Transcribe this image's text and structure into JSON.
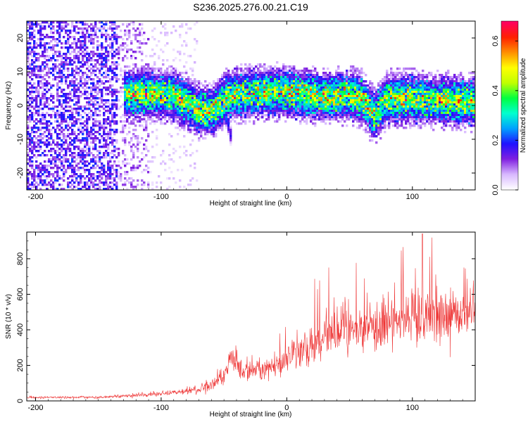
{
  "figure_title": "S236.2025.276.00.21.C19",
  "colors": {
    "snr_line": "#ee3333",
    "spectrogram_background": "#ffffff"
  },
  "chart_data": [
    {
      "type": "heatmap",
      "name": "spectrogram",
      "xlabel": "Height of straight line (km)",
      "ylabel": "Frequency (Hz)",
      "xlim": [
        -207,
        150
      ],
      "ylim": [
        -25,
        25
      ],
      "x_ticks": [
        -200,
        -100,
        0,
        100
      ],
      "y_ticks": [
        -20,
        -10,
        0,
        10,
        20
      ],
      "colorbar": {
        "label": "Normalized spectral amplitude",
        "range": [
          0.0,
          0.68
        ],
        "ticks": [
          0.0,
          0.2,
          0.4,
          0.6
        ],
        "colormap": [
          "#ffffff",
          "#d8b8ff",
          "#8020e0",
          "#2010ff",
          "#00a0ff",
          "#00ffd0",
          "#00ff40",
          "#c0ff00",
          "#ffff00",
          "#ff9000",
          "#ff2000",
          "#ff0060"
        ]
      },
      "band_center_hz": [
        {
          "x": -130,
          "f": 3
        },
        {
          "x": -110,
          "f": 3.5
        },
        {
          "x": -90,
          "f": 3
        },
        {
          "x": -80,
          "f": 1
        },
        {
          "x": -70,
          "f": -1.5
        },
        {
          "x": -60,
          "f": -2
        },
        {
          "x": -52,
          "f": 1
        },
        {
          "x": -45,
          "f": 3
        },
        {
          "x": -30,
          "f": 3.5
        },
        {
          "x": -10,
          "f": 4
        },
        {
          "x": 10,
          "f": 3.5
        },
        {
          "x": 30,
          "f": 2.5
        },
        {
          "x": 50,
          "f": 3
        },
        {
          "x": 60,
          "f": 2
        },
        {
          "x": 65,
          "f": -1
        },
        {
          "x": 70,
          "f": -3
        },
        {
          "x": 80,
          "f": 2
        },
        {
          "x": 100,
          "f": 2
        },
        {
          "x": 120,
          "f": 1.5
        },
        {
          "x": 150,
          "f": 1
        }
      ],
      "descending_branch": [
        {
          "x": -52,
          "f": 0
        },
        {
          "x": -47,
          "f": -5
        },
        {
          "x": -44,
          "f": -10
        }
      ],
      "noise_region_x": [
        -207,
        -70
      ]
    },
    {
      "type": "line",
      "name": "snr",
      "xlabel": "Height of straight line (km)",
      "ylabel": "SNR (10 * v/v)",
      "xlim": [
        -207,
        150
      ],
      "ylim": [
        0,
        950
      ],
      "x_ticks": [
        -200,
        -100,
        0,
        100
      ],
      "y_ticks": [
        0,
        200,
        400,
        600,
        800
      ],
      "trend": [
        {
          "x": -207,
          "y": 20
        },
        {
          "x": -150,
          "y": 20
        },
        {
          "x": -100,
          "y": 40
        },
        {
          "x": -70,
          "y": 60
        },
        {
          "x": -50,
          "y": 130
        },
        {
          "x": -45,
          "y": 260
        },
        {
          "x": -35,
          "y": 160
        },
        {
          "x": -10,
          "y": 200
        },
        {
          "x": 10,
          "y": 280
        },
        {
          "x": 30,
          "y": 360
        },
        {
          "x": 50,
          "y": 390
        },
        {
          "x": 70,
          "y": 420
        },
        {
          "x": 90,
          "y": 450
        },
        {
          "x": 110,
          "y": 480
        },
        {
          "x": 130,
          "y": 480
        },
        {
          "x": 150,
          "y": 500
        }
      ],
      "peak_value": 940,
      "peak_x": 108
    }
  ]
}
